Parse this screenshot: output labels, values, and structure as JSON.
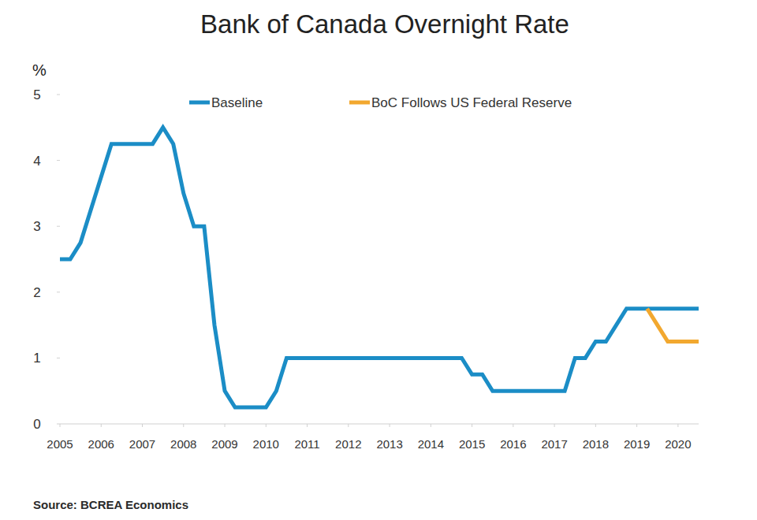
{
  "chart_data": {
    "type": "line",
    "title": "Bank of Canada Overnight Rate",
    "y_label": "%",
    "source": "Source: BCREA Economics",
    "x": [
      2005,
      2005.25,
      2005.5,
      2005.75,
      2006,
      2006.25,
      2006.5,
      2006.75,
      2007,
      2007.25,
      2007.5,
      2007.75,
      2008,
      2008.25,
      2008.5,
      2008.75,
      2009,
      2009.25,
      2009.5,
      2009.75,
      2010,
      2010.25,
      2010.5,
      2010.75,
      2011,
      2011.25,
      2011.5,
      2011.75,
      2012,
      2012.25,
      2012.5,
      2012.75,
      2013,
      2013.25,
      2013.5,
      2013.75,
      2014,
      2014.25,
      2014.5,
      2014.75,
      2015,
      2015.25,
      2015.5,
      2015.75,
      2016,
      2016.25,
      2016.5,
      2016.75,
      2017,
      2017.25,
      2017.5,
      2017.75,
      2018,
      2018.25,
      2018.5,
      2018.75,
      2019,
      2019.25,
      2019.5,
      2019.75,
      2020,
      2020.25,
      2020.5
    ],
    "series": [
      {
        "name": "Baseline",
        "color": "#1b8dc6",
        "values": [
          2.5,
          2.5,
          2.75,
          3.25,
          3.75,
          4.25,
          4.25,
          4.25,
          4.25,
          4.25,
          4.5,
          4.25,
          3.5,
          3.0,
          3.0,
          1.5,
          0.5,
          0.25,
          0.25,
          0.25,
          0.25,
          0.5,
          1.0,
          1.0,
          1.0,
          1.0,
          1.0,
          1.0,
          1.0,
          1.0,
          1.0,
          1.0,
          1.0,
          1.0,
          1.0,
          1.0,
          1.0,
          1.0,
          1.0,
          1.0,
          0.75,
          0.75,
          0.5,
          0.5,
          0.5,
          0.5,
          0.5,
          0.5,
          0.5,
          0.5,
          1.0,
          1.0,
          1.25,
          1.25,
          1.5,
          1.75,
          1.75,
          1.75,
          1.75,
          1.75,
          1.75,
          1.75,
          1.75
        ]
      },
      {
        "name": "BoC Follows US Federal Reserve",
        "color": "#f2a82f",
        "values": [
          null,
          null,
          null,
          null,
          null,
          null,
          null,
          null,
          null,
          null,
          null,
          null,
          null,
          null,
          null,
          null,
          null,
          null,
          null,
          null,
          null,
          null,
          null,
          null,
          null,
          null,
          null,
          null,
          null,
          null,
          null,
          null,
          null,
          null,
          null,
          null,
          null,
          null,
          null,
          null,
          null,
          null,
          null,
          null,
          null,
          null,
          null,
          null,
          null,
          null,
          null,
          null,
          null,
          null,
          null,
          null,
          null,
          1.75,
          1.5,
          1.25,
          1.25,
          1.25,
          1.25
        ]
      }
    ],
    "xlim": [
      2005,
      2020.5
    ],
    "xticks": [
      2005,
      2006,
      2007,
      2008,
      2009,
      2010,
      2011,
      2012,
      2013,
      2014,
      2015,
      2016,
      2017,
      2018,
      2019,
      2020
    ],
    "ylim": [
      0,
      5
    ],
    "yticks": [
      0,
      1,
      2,
      3,
      4,
      5
    ],
    "grid": false,
    "legend": "top"
  }
}
